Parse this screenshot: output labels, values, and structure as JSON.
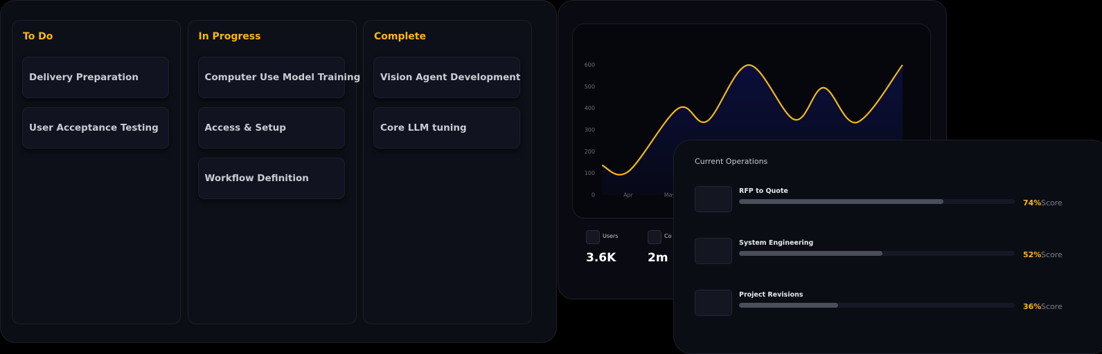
{
  "kanban": {
    "columns": [
      {
        "title": "To Do",
        "cards": [
          "Delivery Preparation",
          "User Acceptance Testing"
        ]
      },
      {
        "title": "In Progress",
        "cards": [
          "Computer Use Model Training",
          "Access & Setup",
          "Workflow Definition"
        ]
      },
      {
        "title": "Complete",
        "cards": [
          "Vision Agent Development",
          "Core LLM tuning"
        ]
      }
    ]
  },
  "chart_data": {
    "type": "line",
    "x": [
      0.37,
      1,
      2.2,
      2.9,
      3.9,
      5,
      5.7,
      6.5,
      7.6
    ],
    "series": [
      {
        "color": "#f5b915",
        "values": [
          137,
          108,
          399,
          341,
          600,
          348,
          495,
          335,
          600
        ]
      }
    ],
    "xlim": [
      0.37,
      7.6
    ],
    "xticks": [
      {
        "value": 1,
        "label": "Apr"
      },
      {
        "value": 2,
        "label": "May"
      }
    ],
    "ylim": [
      0,
      600
    ],
    "yticks": [
      0,
      100,
      200,
      300,
      400,
      500,
      600
    ]
  },
  "stats": [
    {
      "label": "Users",
      "value": "3.6K"
    },
    {
      "label": "Co",
      "value": "2m"
    }
  ],
  "operations": {
    "title": "Current Operations",
    "rows": [
      {
        "name": "RFP to Quote",
        "value": 74,
        "value_label": "74%",
        "unit": "Score"
      },
      {
        "name": "System Engineering",
        "value": 52,
        "value_label": "52%",
        "unit": "Score"
      },
      {
        "name": "Project Revisions",
        "value": 36,
        "value_label": "36%",
        "unit": "Score"
      }
    ]
  }
}
